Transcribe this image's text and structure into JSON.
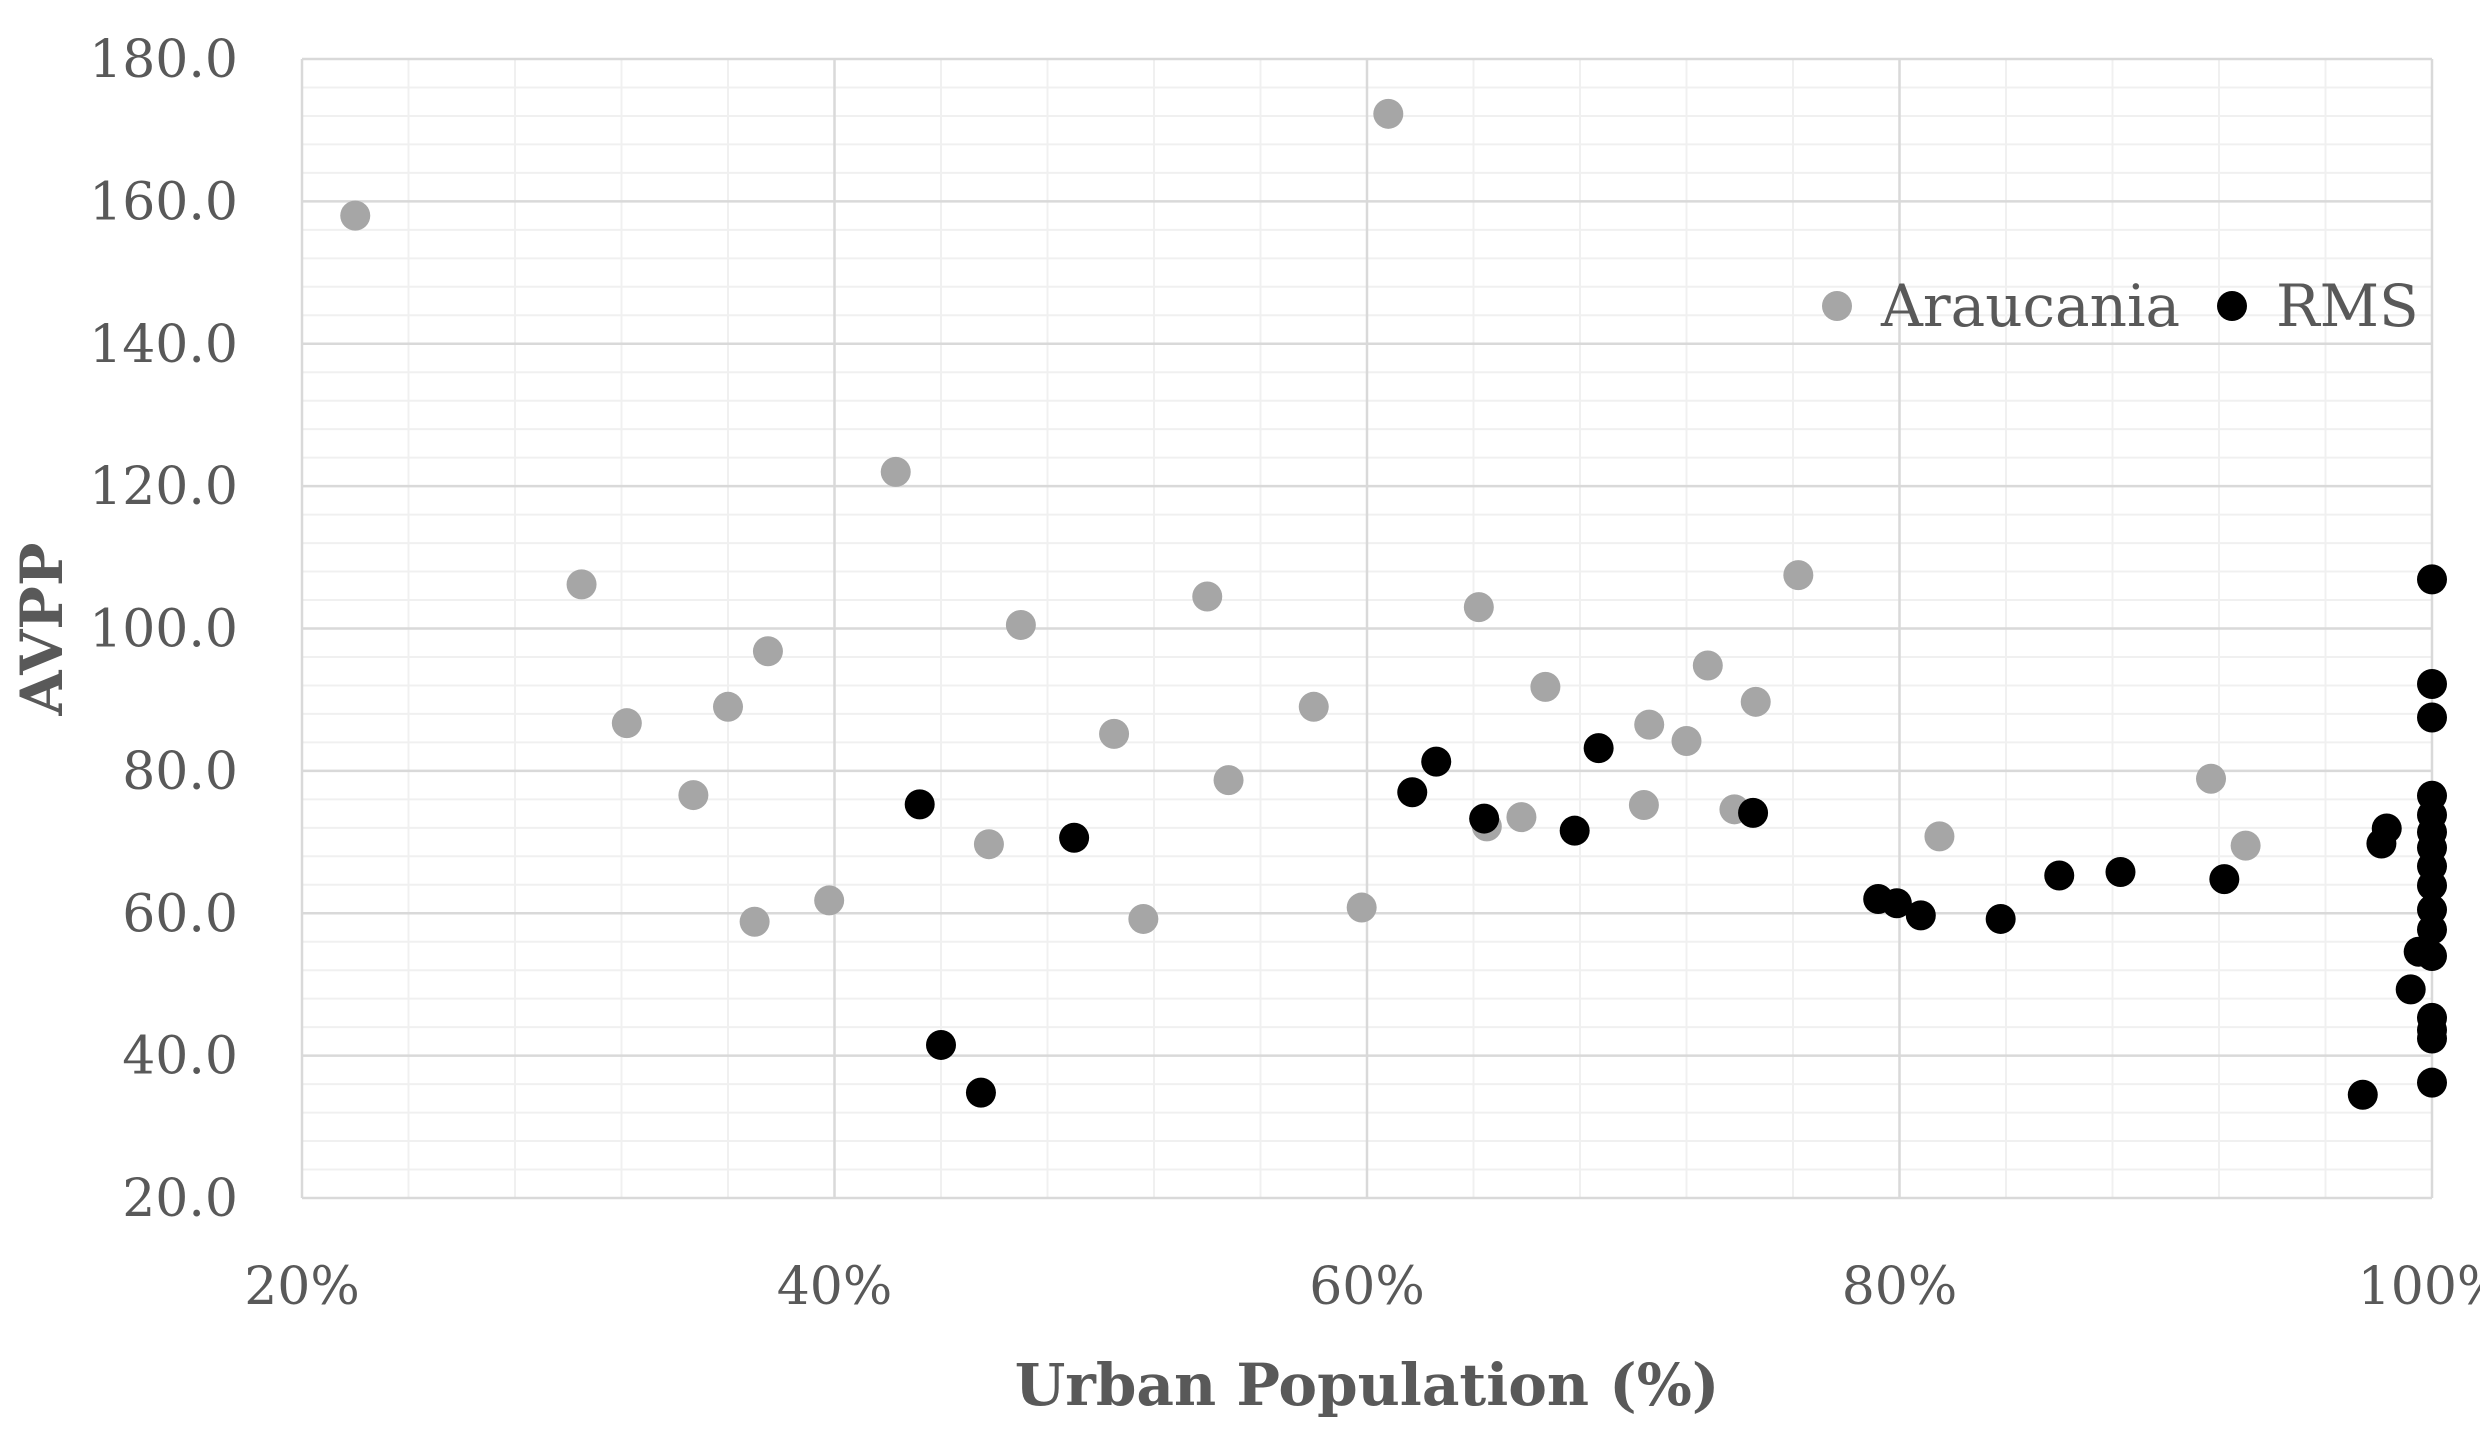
{
  "chart_data": {
    "type": "scatter",
    "title": "",
    "xlabel": "Urban Population (%)",
    "ylabel": "AVPP",
    "xlim": [
      20,
      100
    ],
    "ylim": [
      20,
      180
    ],
    "x_ticks": [
      20,
      40,
      60,
      80,
      100
    ],
    "x_tick_labels": [
      "20%",
      "40%",
      "60%",
      "80%",
      "100%"
    ],
    "y_ticks": [
      20,
      40,
      60,
      80,
      100,
      120,
      140,
      160,
      180
    ],
    "y_tick_labels": [
      "20.0",
      "40.0",
      "60.0",
      "80.0",
      "100.0",
      "120.0",
      "140.0",
      "160.0",
      "180.0"
    ],
    "grid": true,
    "legend_position": "top-right",
    "series": [
      {
        "name": "Araucania",
        "color": "#a6a6a6",
        "points": [
          [
            22.0,
            158.0
          ],
          [
            30.5,
            106.2
          ],
          [
            32.2,
            86.7
          ],
          [
            34.7,
            76.6
          ],
          [
            36.0,
            89.0
          ],
          [
            37.0,
            58.8
          ],
          [
            37.5,
            96.8
          ],
          [
            39.8,
            61.8
          ],
          [
            42.3,
            122.0
          ],
          [
            45.8,
            69.7
          ],
          [
            47.0,
            100.5
          ],
          [
            50.5,
            85.2
          ],
          [
            51.6,
            59.2
          ],
          [
            54.0,
            104.5
          ],
          [
            54.8,
            78.7
          ],
          [
            58.0,
            89.0
          ],
          [
            59.8,
            60.8
          ],
          [
            60.8,
            172.3
          ],
          [
            64.2,
            103.0
          ],
          [
            64.5,
            72.2
          ],
          [
            65.8,
            73.5
          ],
          [
            66.7,
            91.8
          ],
          [
            70.4,
            75.2
          ],
          [
            70.6,
            86.5
          ],
          [
            72.0,
            84.2
          ],
          [
            72.8,
            94.8
          ],
          [
            73.8,
            74.6
          ],
          [
            74.6,
            89.7
          ],
          [
            76.2,
            107.5
          ],
          [
            81.5,
            70.8
          ],
          [
            91.7,
            78.9
          ],
          [
            93.0,
            69.5
          ]
        ]
      },
      {
        "name": "RMS",
        "color": "#000000",
        "points": [
          [
            43.2,
            75.3
          ],
          [
            44.0,
            41.5
          ],
          [
            45.5,
            34.8
          ],
          [
            49.0,
            70.6
          ],
          [
            61.7,
            77.0
          ],
          [
            62.6,
            81.3
          ],
          [
            64.4,
            73.3
          ],
          [
            67.8,
            71.6
          ],
          [
            68.7,
            83.2
          ],
          [
            74.5,
            74.1
          ],
          [
            79.2,
            62.0
          ],
          [
            79.9,
            61.4
          ],
          [
            80.8,
            59.7
          ],
          [
            83.8,
            59.2
          ],
          [
            86.0,
            65.3
          ],
          [
            88.3,
            65.8
          ],
          [
            92.2,
            64.8
          ],
          [
            97.4,
            34.5
          ],
          [
            98.1,
            69.8
          ],
          [
            98.3,
            71.9
          ],
          [
            99.2,
            49.3
          ],
          [
            99.5,
            54.6
          ],
          [
            100.0,
            106.9
          ],
          [
            100.0,
            92.2
          ],
          [
            100.0,
            87.5
          ],
          [
            100.0,
            76.5
          ],
          [
            100.0,
            73.8
          ],
          [
            100.0,
            71.4
          ],
          [
            100.0,
            69.2
          ],
          [
            100.0,
            66.6
          ],
          [
            100.0,
            63.9
          ],
          [
            100.0,
            60.5
          ],
          [
            100.0,
            57.7
          ],
          [
            100.0,
            54.0
          ],
          [
            100.0,
            45.3
          ],
          [
            100.0,
            43.6
          ],
          [
            100.0,
            42.4
          ],
          [
            100.0,
            36.2
          ]
        ]
      }
    ]
  }
}
